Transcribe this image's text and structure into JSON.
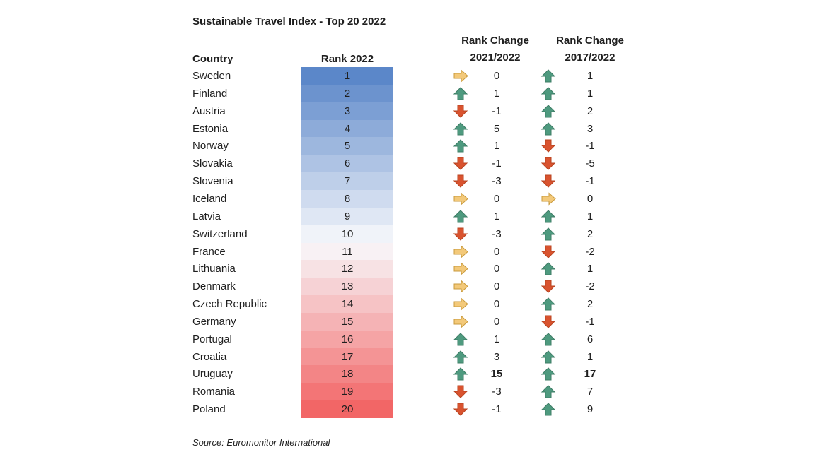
{
  "chart_data": {
    "type": "table",
    "title": "Sustainable Travel Index - Top 20 2022",
    "columns": {
      "country": "Country",
      "rank": "Rank 2022",
      "change1": [
        "Rank Change",
        "2021/2022"
      ],
      "change2": [
        "Rank Change",
        "2017/2022"
      ]
    },
    "rows": [
      {
        "country": "Sweden",
        "rank": 1,
        "c1": 0,
        "c2": 1
      },
      {
        "country": "Finland",
        "rank": 2,
        "c1": 1,
        "c2": 1
      },
      {
        "country": "Austria",
        "rank": 3,
        "c1": -1,
        "c2": 2
      },
      {
        "country": "Estonia",
        "rank": 4,
        "c1": 5,
        "c2": 3
      },
      {
        "country": "Norway",
        "rank": 5,
        "c1": 1,
        "c2": -1
      },
      {
        "country": "Slovakia",
        "rank": 6,
        "c1": -1,
        "c2": -5
      },
      {
        "country": "Slovenia",
        "rank": 7,
        "c1": -3,
        "c2": -1
      },
      {
        "country": "Iceland",
        "rank": 8,
        "c1": 0,
        "c2": 0
      },
      {
        "country": "Latvia",
        "rank": 9,
        "c1": 1,
        "c2": 1
      },
      {
        "country": "Switzerland",
        "rank": 10,
        "c1": -3,
        "c2": 2
      },
      {
        "country": "France",
        "rank": 11,
        "c1": 0,
        "c2": -2
      },
      {
        "country": "Lithuania",
        "rank": 12,
        "c1": 0,
        "c2": 1
      },
      {
        "country": "Denmark",
        "rank": 13,
        "c1": 0,
        "c2": -2
      },
      {
        "country": "Czech Republic",
        "rank": 14,
        "c1": 0,
        "c2": 2
      },
      {
        "country": "Germany",
        "rank": 15,
        "c1": 0,
        "c2": -1
      },
      {
        "country": "Portugal",
        "rank": 16,
        "c1": 1,
        "c2": 6
      },
      {
        "country": "Croatia",
        "rank": 17,
        "c1": 3,
        "c2": 1
      },
      {
        "country": "Uruguay",
        "rank": 18,
        "c1": 15,
        "c2": 17
      },
      {
        "country": "Romania",
        "rank": 19,
        "c1": -3,
        "c2": 7
      },
      {
        "country": "Poland",
        "rank": 20,
        "c1": -1,
        "c2": 9
      }
    ],
    "bold_rows": [
      "Uruguay"
    ],
    "source": "Source: Euromonitor International"
  },
  "colors": {
    "rank_top": "#5b87c9",
    "rank_mid": "#f8f9fc",
    "rank_bottom": "#f26666",
    "arrow_up": "#4e9a7f",
    "arrow_down": "#d9532f",
    "arrow_flat": "#f3c97a"
  }
}
